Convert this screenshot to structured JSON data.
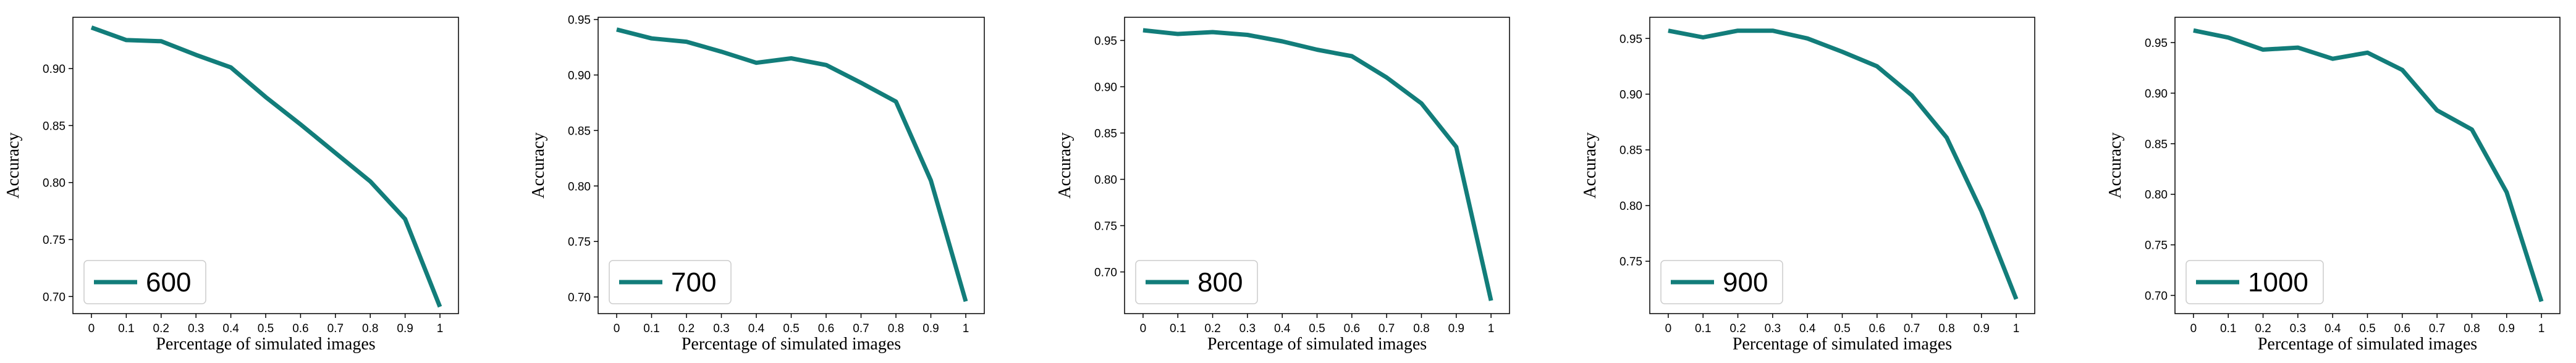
{
  "chart_data": [
    {
      "type": "line",
      "xlabel": "Percentage of simulated images",
      "ylabel": "Accuracy",
      "x": [
        0,
        0.1,
        0.2,
        0.3,
        0.4,
        0.5,
        0.6,
        0.7,
        0.8,
        0.9,
        1
      ],
      "xticks": [
        "0",
        "0.1",
        "0.2",
        "0.3",
        "0.4",
        "0.5",
        "0.6",
        "0.7",
        "0.8",
        "0.9",
        "1"
      ],
      "ylim": [
        0.685,
        0.945
      ],
      "yticks": [
        "0.70",
        "0.75",
        "0.80",
        "0.85",
        "0.90"
      ],
      "series": [
        {
          "name": "600",
          "values": [
            0.936,
            0.925,
            0.924,
            0.912,
            0.901,
            0.875,
            0.851,
            0.826,
            0.801,
            0.768,
            0.691
          ]
        }
      ],
      "legend_position": "lower-left",
      "grid": false
    },
    {
      "type": "line",
      "xlabel": "Percentage of simulated images",
      "ylabel": "Accuracy",
      "x": [
        0,
        0.1,
        0.2,
        0.3,
        0.4,
        0.5,
        0.6,
        0.7,
        0.8,
        0.9,
        1
      ],
      "xticks": [
        "0",
        "0.1",
        "0.2",
        "0.3",
        "0.4",
        "0.5",
        "0.6",
        "0.7",
        "0.8",
        "0.9",
        "1"
      ],
      "ylim": [
        0.685,
        0.952
      ],
      "yticks": [
        "0.70",
        "0.75",
        "0.80",
        "0.85",
        "0.90",
        "0.95"
      ],
      "series": [
        {
          "name": "700",
          "values": [
            0.941,
            0.933,
            0.93,
            0.921,
            0.911,
            0.915,
            0.909,
            0.893,
            0.876,
            0.805,
            0.696
          ]
        }
      ],
      "legend_position": "lower-left",
      "grid": false
    },
    {
      "type": "line",
      "xlabel": "Percentage of simulated images",
      "ylabel": "Accuracy",
      "x": [
        0,
        0.1,
        0.2,
        0.3,
        0.4,
        0.5,
        0.6,
        0.7,
        0.8,
        0.9,
        1
      ],
      "xticks": [
        "0",
        "0.1",
        "0.2",
        "0.3",
        "0.4",
        "0.5",
        "0.6",
        "0.7",
        "0.8",
        "0.9",
        "1"
      ],
      "ylim": [
        0.655,
        0.975
      ],
      "yticks": [
        "0.70",
        "0.75",
        "0.80",
        "0.85",
        "0.90",
        "0.95"
      ],
      "series": [
        {
          "name": "800",
          "values": [
            0.961,
            0.957,
            0.959,
            0.956,
            0.949,
            0.94,
            0.933,
            0.91,
            0.882,
            0.835,
            0.669
          ]
        }
      ],
      "legend_position": "lower-left",
      "grid": false
    },
    {
      "type": "line",
      "xlabel": "Percentage of simulated images",
      "ylabel": "Accuracy",
      "x": [
        0,
        0.1,
        0.2,
        0.3,
        0.4,
        0.5,
        0.6,
        0.7,
        0.8,
        0.9,
        1
      ],
      "xticks": [
        "0",
        "0.1",
        "0.2",
        "0.3",
        "0.4",
        "0.5",
        "0.6",
        "0.7",
        "0.8",
        "0.9",
        "1"
      ],
      "ylim": [
        0.703,
        0.969
      ],
      "yticks": [
        "0.75",
        "0.80",
        "0.85",
        "0.90",
        "0.95"
      ],
      "series": [
        {
          "name": "900",
          "values": [
            0.957,
            0.951,
            0.957,
            0.957,
            0.95,
            0.938,
            0.925,
            0.899,
            0.861,
            0.795,
            0.716
          ]
        }
      ],
      "legend_position": "lower-left",
      "grid": false
    },
    {
      "type": "line",
      "xlabel": "Percentage of simulated images",
      "ylabel": "Accuracy",
      "x": [
        0,
        0.1,
        0.2,
        0.3,
        0.4,
        0.5,
        0.6,
        0.7,
        0.8,
        0.9,
        1
      ],
      "xticks": [
        "0",
        "0.1",
        "0.2",
        "0.3",
        "0.4",
        "0.5",
        "0.6",
        "0.7",
        "0.8",
        "0.9",
        "1"
      ],
      "ylim": [
        0.682,
        0.975
      ],
      "yticks": [
        "0.70",
        "0.75",
        "0.80",
        "0.85",
        "0.90",
        "0.95"
      ],
      "series": [
        {
          "name": "1000",
          "values": [
            0.962,
            0.955,
            0.943,
            0.945,
            0.934,
            0.94,
            0.923,
            0.883,
            0.864,
            0.802,
            0.694
          ]
        }
      ],
      "legend_position": "lower-left",
      "grid": false
    }
  ],
  "style": {
    "line_color": "#127d7a",
    "axis_color": "#000000",
    "legend_border": "#cccccc"
  }
}
